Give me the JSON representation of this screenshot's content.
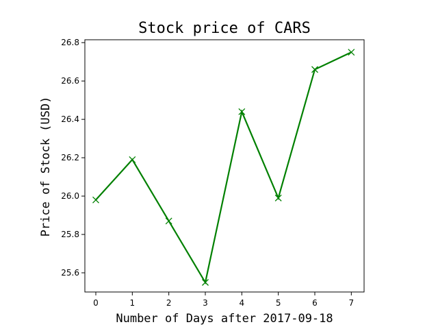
{
  "chart_data": {
    "type": "line",
    "title": "Stock price of CARS",
    "xlabel": "Number of Days after 2017-09-18",
    "ylabel": "Price of Stock (USD)",
    "x": [
      0,
      1,
      2,
      3,
      4,
      5,
      6,
      7
    ],
    "xticks": [
      "0",
      "1",
      "2",
      "3",
      "4",
      "5",
      "6",
      "7"
    ],
    "yticks": [
      "25.6",
      "25.8",
      "26.0",
      "26.2",
      "26.4",
      "26.6",
      "26.8"
    ],
    "xlim": [
      -0.3,
      7.35
    ],
    "ylim": [
      25.5,
      26.815
    ],
    "series": [
      {
        "values": [
          25.98,
          26.19,
          25.87,
          25.55,
          26.44,
          25.99,
          26.66,
          26.75
        ],
        "color": "#008000",
        "marker": "x"
      }
    ],
    "grid": false
  }
}
